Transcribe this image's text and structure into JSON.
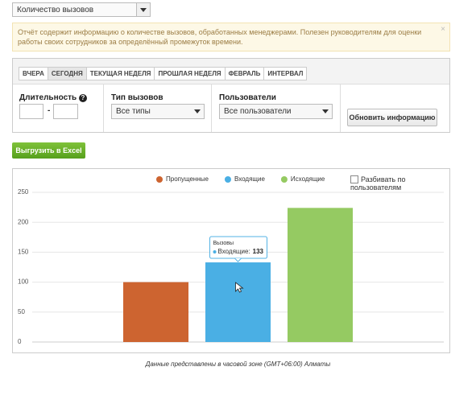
{
  "report_select": "Количество вызовов",
  "notice": "Отчёт содержит информацию о количестве вызовов, обработанных менеджерами. Полезен руководителям для оценки работы своих сотрудников за определённый промежуток времени.",
  "notice_close": "×",
  "tabs": [
    "ВЧЕРА",
    "СЕГОДНЯ",
    "ТЕКУЩАЯ НЕДЕЛЯ",
    "ПРОШЛАЯ НЕДЕЛЯ",
    "ФЕВРАЛЬ",
    "ИНТЕРВАЛ"
  ],
  "active_tab": "СЕГОДНЯ",
  "filters": {
    "duration_label": "Длительность",
    "duration_help": "?",
    "duration_sep": "-",
    "call_type_label": "Тип вызовов",
    "call_type_value": "Все типы",
    "users_label": "Пользователи",
    "users_value": "Все пользователи",
    "refresh_button": "Обновить информацию"
  },
  "export_button": "Выгрузить в Excel",
  "split_by_users": "Разбивать по пользователям",
  "footnote": "Данные представлены в часовой зоне (GMT+06:00) Алматы",
  "chart_data": {
    "type": "bar",
    "categories": [
      null
    ],
    "series": [
      {
        "name": "Пропущенные",
        "color": "#cd6430",
        "values": [
          100
        ]
      },
      {
        "name": "Входящие",
        "color": "#4aafe4",
        "values": [
          133
        ]
      },
      {
        "name": "Исходящие",
        "color": "#95ca62",
        "values": [
          224
        ]
      }
    ],
    "ylim": [
      0,
      250
    ],
    "yticks": [
      0,
      50,
      100,
      150,
      200,
      250
    ],
    "grid": true,
    "legend": "top",
    "tooltip": {
      "title": "Вызовы",
      "label": "Входящие:"
    }
  }
}
